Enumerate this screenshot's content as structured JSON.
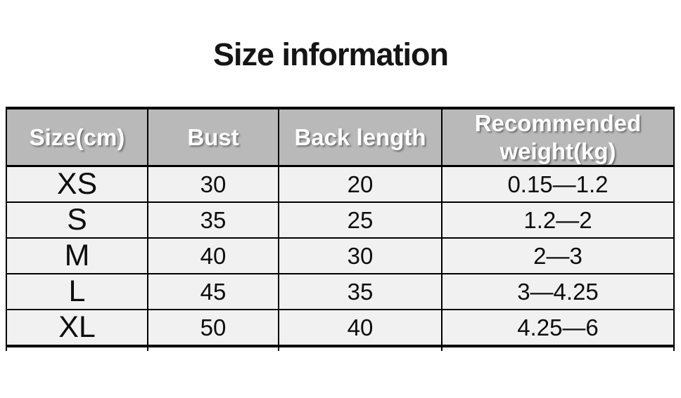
{
  "page": {
    "title": "Size information"
  },
  "chart_data": {
    "type": "table",
    "title": "Size information",
    "columns": [
      "Size(cm)",
      "Bust",
      "Back length",
      "Recommended weight(kg)"
    ],
    "rows": [
      [
        "XS",
        "30",
        "20",
        "0.15—1.2"
      ],
      [
        "S",
        "35",
        "25",
        "1.2—2"
      ],
      [
        "M",
        "40",
        "30",
        "2—3"
      ],
      [
        "L",
        "45",
        "35",
        "3—4.25"
      ],
      [
        "XL",
        "50",
        "40",
        "4.25—6"
      ]
    ]
  },
  "colors": {
    "title_text": "#151515",
    "header_bg": "#b9b9b9",
    "header_text": "#ffffff",
    "row_bg": "#f1f1f1",
    "border": "#000000",
    "page_bg": "#ffffff"
  }
}
